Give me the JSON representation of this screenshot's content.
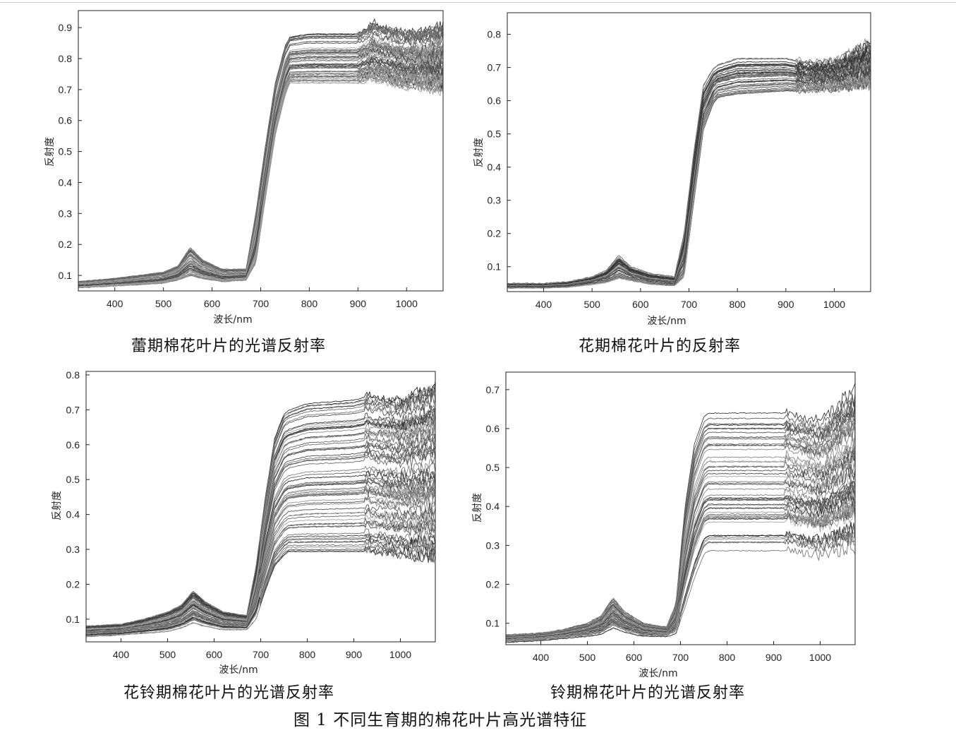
{
  "figure_caption": "图 1  不同生育期的棉花叶片高光谱特征",
  "chart_data": [
    {
      "type": "line",
      "title": "蕾期棉花叶片的光谱反射率",
      "xlabel": "波长/nm",
      "ylabel": "反射度",
      "xlim": [
        325,
        1075
      ],
      "ylim": [
        0.05,
        0.955
      ],
      "xticks": [
        400,
        500,
        600,
        700,
        800,
        900,
        1000
      ],
      "yticks": [
        0.1,
        0.2,
        0.3,
        0.4,
        0.5,
        0.6,
        0.7,
        0.8,
        0.9
      ],
      "n_series": 60,
      "curve": {
        "x": [
          325,
          400,
          450,
          500,
          530,
          555,
          580,
          620,
          670,
          690,
          710,
          730,
          750,
          760,
          800,
          900,
          930,
          1000,
          1075
        ],
        "base_min": [
          0.06,
          0.066,
          0.07,
          0.075,
          0.085,
          0.1,
          0.09,
          0.08,
          0.085,
          0.14,
          0.35,
          0.55,
          0.68,
          0.72,
          0.72,
          0.72,
          0.73,
          0.71,
          0.7
        ],
        "base_max": [
          0.08,
          0.09,
          0.1,
          0.11,
          0.13,
          0.19,
          0.15,
          0.12,
          0.12,
          0.3,
          0.52,
          0.72,
          0.84,
          0.87,
          0.88,
          0.88,
          0.91,
          0.88,
          0.9
        ]
      },
      "noise_start": 900
    },
    {
      "type": "line",
      "title": "花期棉花叶片的反射率",
      "xlabel": "波长/nm",
      "ylabel": "反射度",
      "xlim": [
        325,
        1075
      ],
      "ylim": [
        0.025,
        0.865
      ],
      "xticks": [
        400,
        500,
        600,
        700,
        800,
        900,
        1000
      ],
      "yticks": [
        0.1,
        0.2,
        0.3,
        0.4,
        0.5,
        0.6,
        0.7,
        0.8
      ],
      "n_series": 50,
      "curve": {
        "x": [
          325,
          400,
          450,
          500,
          530,
          555,
          580,
          620,
          670,
          690,
          710,
          730,
          750,
          760,
          800,
          900,
          930,
          1000,
          1075
        ],
        "base_min": [
          0.035,
          0.035,
          0.037,
          0.045,
          0.05,
          0.06,
          0.055,
          0.045,
          0.04,
          0.06,
          0.28,
          0.5,
          0.58,
          0.6,
          0.61,
          0.62,
          0.62,
          0.63,
          0.64
        ],
        "base_max": [
          0.05,
          0.05,
          0.055,
          0.07,
          0.09,
          0.135,
          0.1,
          0.08,
          0.07,
          0.2,
          0.45,
          0.65,
          0.7,
          0.71,
          0.73,
          0.73,
          0.72,
          0.72,
          0.78
        ]
      },
      "noise_start": 920
    },
    {
      "type": "line",
      "title": "花铃期棉花叶片的光谱反射率",
      "xlabel": "波长/nm",
      "ylabel": "反射度",
      "xlim": [
        325,
        1075
      ],
      "ylim": [
        0.035,
        0.81
      ],
      "xticks": [
        400,
        500,
        600,
        700,
        800,
        900,
        1000
      ],
      "yticks": [
        0.1,
        0.2,
        0.3,
        0.4,
        0.5,
        0.6,
        0.7,
        0.8
      ],
      "n_series": 70,
      "curve": {
        "x": [
          325,
          400,
          450,
          500,
          530,
          555,
          580,
          620,
          670,
          690,
          710,
          730,
          750,
          760,
          800,
          900,
          930,
          1000,
          1075
        ],
        "base_min": [
          0.05,
          0.055,
          0.06,
          0.065,
          0.075,
          0.09,
          0.08,
          0.07,
          0.07,
          0.1,
          0.18,
          0.25,
          0.28,
          0.29,
          0.29,
          0.29,
          0.29,
          0.28,
          0.27
        ],
        "base_max": [
          0.08,
          0.085,
          0.1,
          0.12,
          0.14,
          0.18,
          0.15,
          0.12,
          0.11,
          0.25,
          0.45,
          0.62,
          0.69,
          0.7,
          0.72,
          0.73,
          0.74,
          0.73,
          0.77
        ]
      },
      "noise_start": 930
    },
    {
      "type": "line",
      "title": "铃期棉花叶片的光谱反射率",
      "xlabel": "波长/nm",
      "ylabel": "反射度",
      "xlim": [
        325,
        1075
      ],
      "ylim": [
        0.045,
        0.745
      ],
      "xticks": [
        400,
        500,
        600,
        700,
        800,
        900,
        1000
      ],
      "yticks": [
        0.1,
        0.2,
        0.3,
        0.4,
        0.5,
        0.6,
        0.7
      ],
      "n_series": 55,
      "curve": {
        "x": [
          325,
          400,
          450,
          500,
          530,
          555,
          580,
          620,
          670,
          690,
          710,
          730,
          750,
          760,
          800,
          900,
          930,
          1000,
          1075
        ],
        "base_min": [
          0.05,
          0.055,
          0.06,
          0.065,
          0.07,
          0.085,
          0.075,
          0.065,
          0.065,
          0.07,
          0.13,
          0.2,
          0.26,
          0.27,
          0.27,
          0.27,
          0.27,
          0.26,
          0.28
        ],
        "base_max": [
          0.07,
          0.075,
          0.085,
          0.1,
          0.12,
          0.165,
          0.13,
          0.1,
          0.09,
          0.15,
          0.4,
          0.56,
          0.63,
          0.64,
          0.64,
          0.64,
          0.64,
          0.62,
          0.7
        ]
      },
      "noise_start": 925
    }
  ]
}
